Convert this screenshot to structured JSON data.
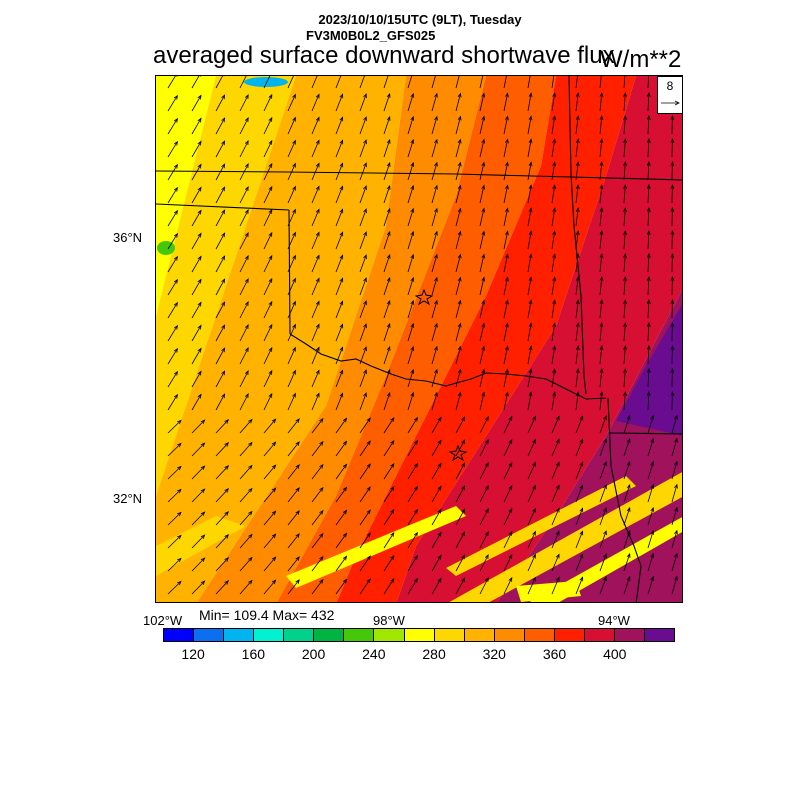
{
  "header": {
    "date_line": "2023/10/10/15UTC (9LT), Tuesday",
    "model_line": "FV3M0B0L2_GFS025",
    "title": "averaged surface downward shortwave flux",
    "units": "W/m**2"
  },
  "map": {
    "lat_labels": [
      "36°N",
      "32°N"
    ],
    "lon_labels": [
      "102°W",
      "98°W",
      "94°W"
    ],
    "stats": "Min= 109.4 Max= 432",
    "reference_vector": "8",
    "markers": [
      "star-marker",
      "star-marker"
    ],
    "field_colors": {
      "yellow": "#FFFF00",
      "gold": "#FFD700",
      "orange": "#FFB300",
      "dark_orange": "#FF8C00",
      "orange_red": "#FF5E00",
      "red": "#FF2000",
      "crimson": "#D70F33",
      "magenta": "#A0125C",
      "purple": "#6A0C8F"
    }
  },
  "colorbar": {
    "colors": [
      "#0000FF",
      "#0C6FF0",
      "#00B4F0",
      "#00F0D0",
      "#00D28C",
      "#00B444",
      "#46C80A",
      "#A0E600",
      "#FFFF00",
      "#FFD700",
      "#FFB300",
      "#FF8C00",
      "#FF5E00",
      "#FF2000",
      "#D70F33",
      "#A0125C",
      "#6A0C8F"
    ],
    "labels": [
      "120",
      "160",
      "200",
      "240",
      "280",
      "320",
      "360",
      "400"
    ]
  }
}
